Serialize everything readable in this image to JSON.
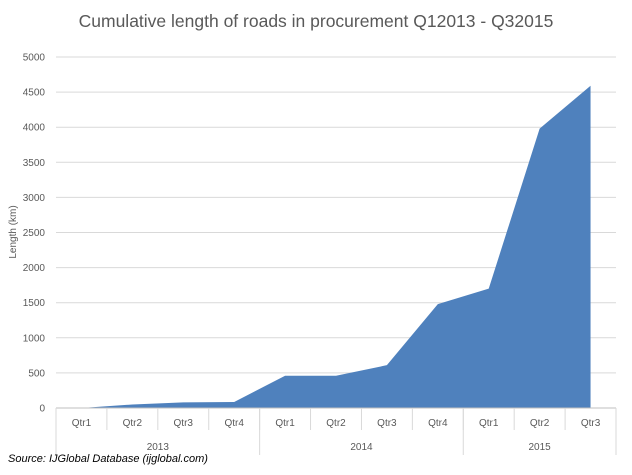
{
  "chart_data": {
    "type": "area",
    "title": "Cumulative length of roads in procurement Q12013 - Q32015",
    "ylabel": "Length (km)",
    "xlabel": "",
    "ylim": [
      0,
      5000
    ],
    "yticks": [
      0,
      500,
      1000,
      1500,
      2000,
      2500,
      3000,
      3500,
      4000,
      4500,
      5000
    ],
    "grid": "horizontal",
    "legend": "none",
    "categories": [
      "Qtr1",
      "Qtr2",
      "Qtr3",
      "Qtr4",
      "Qtr1",
      "Qtr2",
      "Qtr3",
      "Qtr4",
      "Qtr1",
      "Qtr2",
      "Qtr3"
    ],
    "groups": [
      {
        "label": "2013",
        "count": 4
      },
      {
        "label": "2014",
        "count": 4
      },
      {
        "label": "2015",
        "count": 3
      }
    ],
    "series": [
      {
        "color": "#4f81bd",
        "values": [
          0,
          50,
          80,
          85,
          460,
          460,
          610,
          1480,
          1700,
          3980,
          4590
        ]
      }
    ]
  },
  "source": "Source: IJGlobal Database (ijglobal.com)"
}
